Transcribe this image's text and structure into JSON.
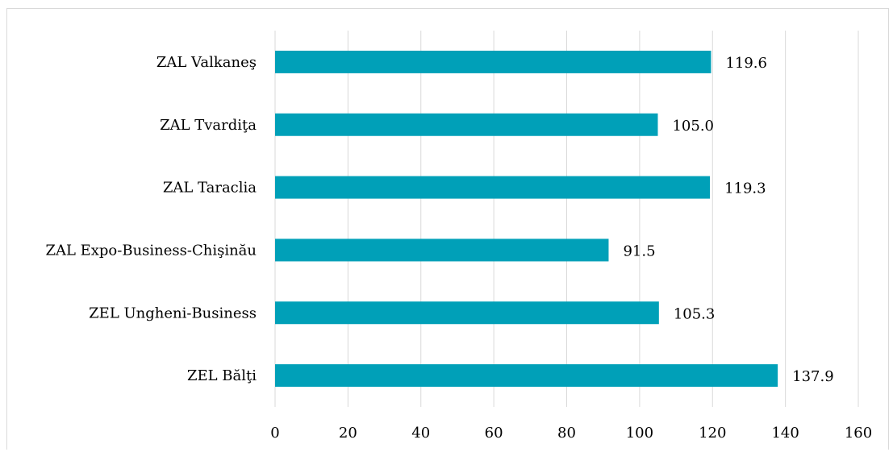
{
  "chart_data": {
    "type": "bar",
    "orientation": "horizontal",
    "title": "",
    "xlabel": "",
    "ylabel": "",
    "categories": [
      "ZAL Valkaneş",
      "ZAL Tvardiţa",
      "ZAL Taraclia",
      "ZAL Expo-Business-Chişinău",
      "ZEL Ungheni-Business",
      "ZEL Bălţi"
    ],
    "values": [
      119.6,
      105.0,
      119.3,
      91.5,
      105.3,
      137.9
    ],
    "value_labels": [
      "119.6",
      "105.0",
      "119.3",
      "91.5",
      "105.3",
      "137.9"
    ],
    "xlim": [
      0,
      160
    ],
    "x_ticks": [
      0,
      20,
      40,
      60,
      80,
      100,
      120,
      140,
      160
    ],
    "grid": true,
    "legend": "none",
    "bar_color": "#00a0b8",
    "grid_color": "#d9d9d9"
  }
}
